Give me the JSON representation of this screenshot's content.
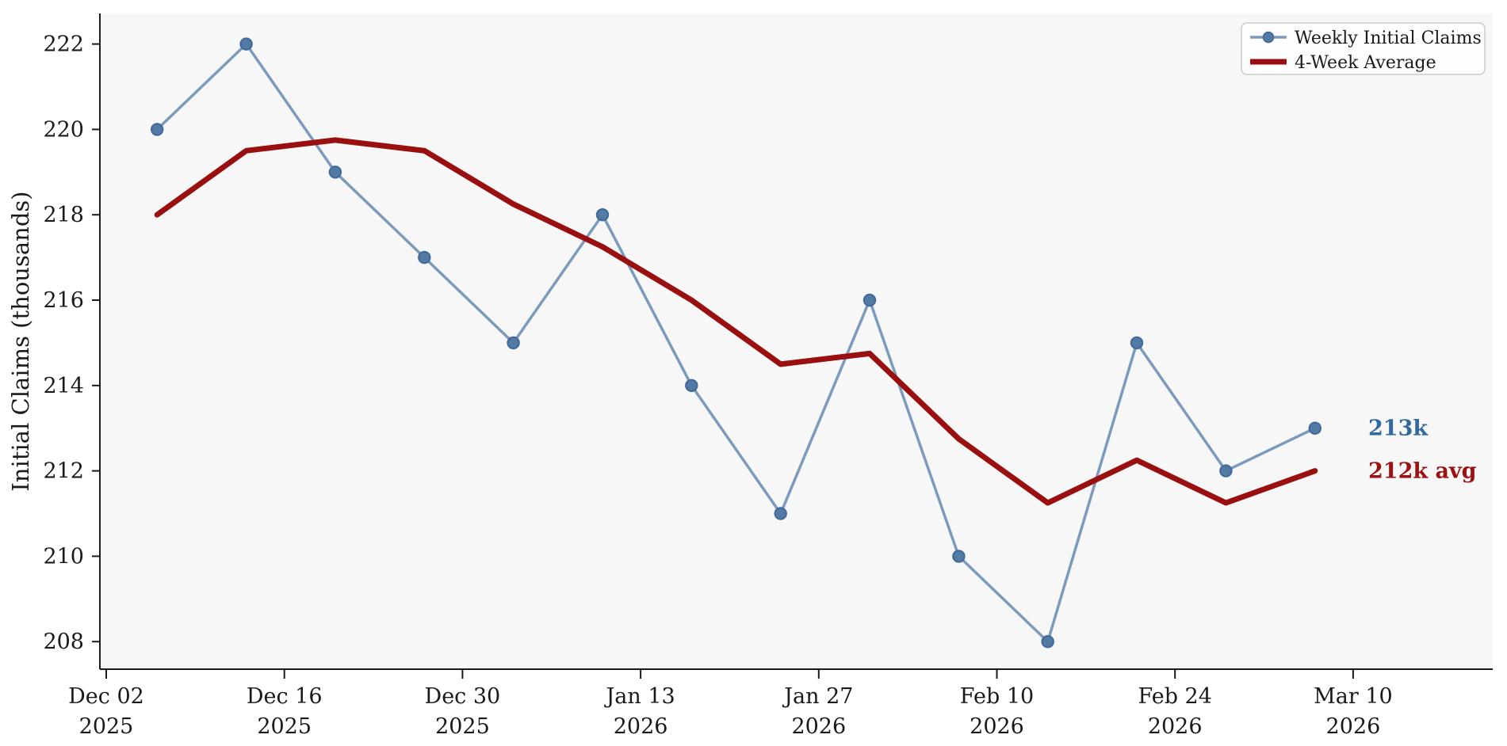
{
  "figure": {
    "ylabel": "Initial Claims (thousands)",
    "colors": {
      "figure_background": "#ffffff",
      "plot_background": "#f7f7f7",
      "axis": "#1a1a1a",
      "weekly_line": "#7c9bbc",
      "weekly_marker_fill": "#527aa4",
      "weekly_marker_edge": "#40689a",
      "avg_line": "#9a0f0f",
      "annotation_weekly": "#336a9e",
      "annotation_avg": "#9a1212",
      "legend_background": "#fdfdfd",
      "legend_border": "#cccccc"
    }
  },
  "chart_data": {
    "type": "line",
    "title": "",
    "xlabel": "",
    "ylabel": "Initial Claims (thousands)",
    "grid": false,
    "x_axis": {
      "tick_labels": [
        {
          "line1": "Dec 02",
          "line2": "2025",
          "day": 0
        },
        {
          "line1": "Dec 16",
          "line2": "2025",
          "day": 14
        },
        {
          "line1": "Dec 30",
          "line2": "2025",
          "day": 28
        },
        {
          "line1": "Jan 13",
          "line2": "2026",
          "day": 42
        },
        {
          "line1": "Jan 27",
          "line2": "2026",
          "day": 56
        },
        {
          "line1": "Feb 10",
          "line2": "2026",
          "day": 70
        },
        {
          "line1": "Feb 24",
          "line2": "2026",
          "day": 84
        },
        {
          "line1": "Mar 10",
          "line2": "2026",
          "day": 98
        }
      ]
    },
    "y_axis": {
      "ticks": [
        208,
        210,
        212,
        214,
        216,
        218,
        220,
        222
      ],
      "range": [
        207.35,
        222.7
      ]
    },
    "points_day_offsets": [
      4,
      11,
      18,
      25,
      32,
      39,
      46,
      53,
      60,
      67,
      74,
      81,
      88,
      95
    ],
    "series": [
      {
        "name": "Weekly Initial Claims",
        "marker": "circle",
        "values": [
          220,
          222,
          219,
          217,
          215,
          218,
          214,
          211,
          216,
          210,
          208,
          215,
          212,
          213
        ]
      },
      {
        "name": "4-Week Average",
        "marker": "none",
        "values": [
          218,
          219.5,
          219.75,
          219.5,
          218.25,
          217.25,
          216,
          214.5,
          214.75,
          212.75,
          211.25,
          212.25,
          211.25,
          212
        ]
      }
    ],
    "legend": {
      "position": "top-right",
      "entries": [
        "Weekly Initial Claims",
        "4-Week Average"
      ]
    },
    "annotations": [
      {
        "text": "213k",
        "value": 213,
        "series": "Weekly Initial Claims"
      },
      {
        "text": "212k avg",
        "value": 212,
        "series": "4-Week Average"
      }
    ]
  }
}
